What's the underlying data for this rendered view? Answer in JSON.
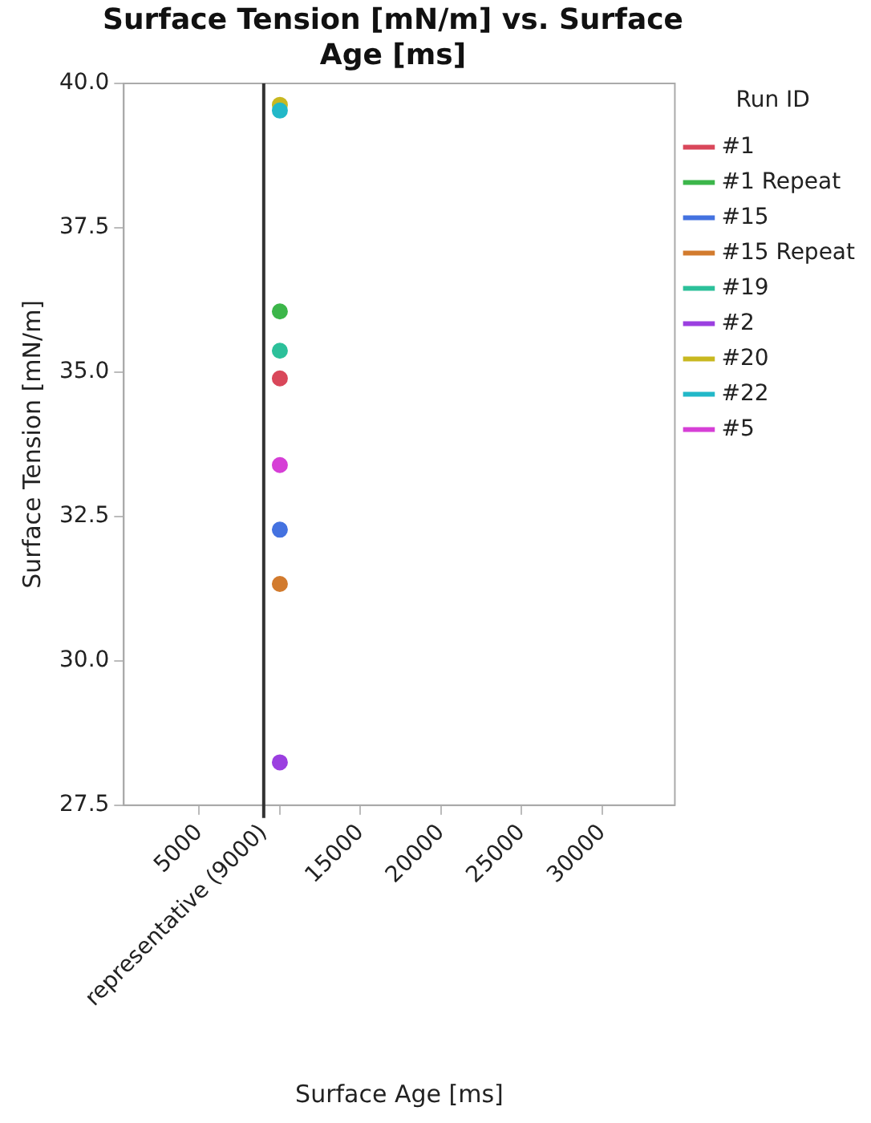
{
  "chart_data": {
    "type": "scatter",
    "title": "Surface Tension [mN/m] vs. Surface Age [ms]",
    "xlabel": "Surface Age [ms]",
    "ylabel": "Surface Tension [mN/m]",
    "legend_title": "Run ID",
    "xlim": [
      320,
      34500
    ],
    "xticks": [
      5000,
      {
        "value": 9000,
        "label": "representative (9000)"
      },
      {
        "value": 10000,
        "label": null
      },
      15000,
      20000,
      25000,
      30000
    ],
    "x": [
      10000
    ],
    "ylim": [
      27.5,
      40.0
    ],
    "yticks": [
      {
        "value": 27.5,
        "label": "27.5"
      },
      {
        "value": 30,
        "label": "30.0"
      },
      {
        "value": 32.5,
        "label": "32.5"
      },
      {
        "value": 35,
        "label": "35.0"
      },
      {
        "value": 37.5,
        "label": "37.5"
      },
      {
        "value": 40,
        "label": "40.0"
      }
    ],
    "ref_lines": [
      {
        "axis": "x",
        "value": 9000,
        "color": "#333333"
      }
    ],
    "grid": false,
    "legend": "right",
    "marker": "circle",
    "series": [
      {
        "name": "#1",
        "color": "#d9475a",
        "values": [
          34.89
        ]
      },
      {
        "name": "#1 Repeat",
        "color": "#3cb64a",
        "values": [
          36.05
        ]
      },
      {
        "name": "#15",
        "color": "#4472e0",
        "values": [
          32.27
        ]
      },
      {
        "name": "#15 Repeat",
        "color": "#d27b2e",
        "values": [
          31.33
        ]
      },
      {
        "name": "#19",
        "color": "#2cc09a",
        "values": [
          35.37
        ]
      },
      {
        "name": "#2",
        "color": "#9b3fe0",
        "values": [
          28.24
        ]
      },
      {
        "name": "#20",
        "color": "#c8b820",
        "values": [
          39.63
        ]
      },
      {
        "name": "#22",
        "color": "#22b8c8",
        "values": [
          39.53
        ]
      },
      {
        "name": "#5",
        "color": "#d63fd6",
        "values": [
          33.39
        ]
      }
    ]
  }
}
